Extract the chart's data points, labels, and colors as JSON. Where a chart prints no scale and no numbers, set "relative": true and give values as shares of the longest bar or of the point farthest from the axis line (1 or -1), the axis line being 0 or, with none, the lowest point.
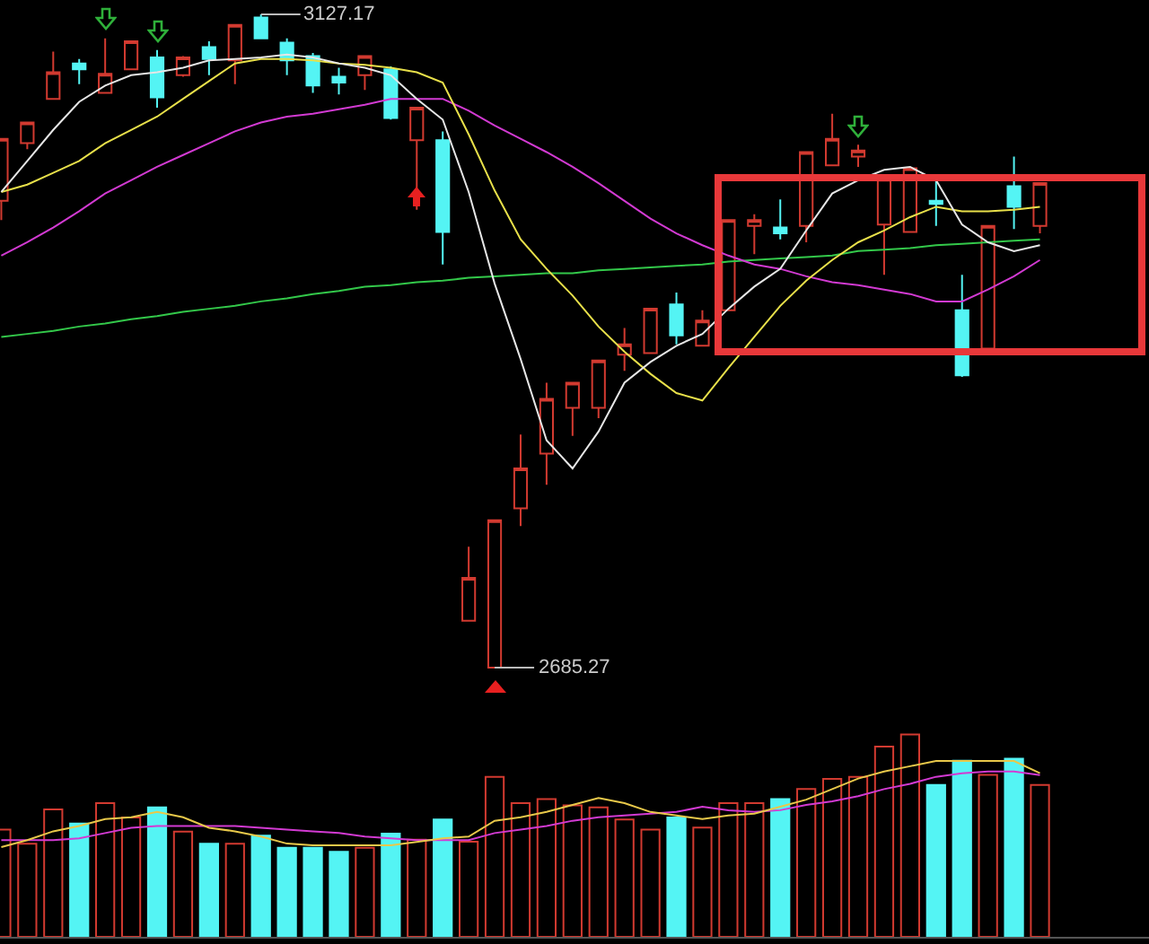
{
  "chart_data": [
    {
      "type": "candlestick",
      "categories": [
        null,
        null,
        null,
        null,
        null,
        null,
        null,
        null,
        null,
        null,
        null,
        null,
        null,
        null,
        null,
        null,
        null,
        null,
        null,
        null,
        null,
        null,
        null,
        null,
        null,
        null,
        null,
        null,
        null,
        null,
        null,
        null,
        null,
        null,
        null,
        null,
        null,
        null,
        null,
        null,
        null
      ],
      "ohlc": [
        [
          3001,
          3043,
          2988,
          3043
        ],
        [
          3040,
          3054,
          3036,
          3054
        ],
        [
          3070,
          3102,
          3070,
          3088
        ],
        [
          3094,
          3097,
          3080,
          3090
        ],
        [
          3074,
          3111,
          3074,
          3087
        ],
        [
          3090,
          3109,
          3090,
          3109
        ],
        [
          3098,
          3103,
          3064,
          3071
        ],
        [
          3086,
          3099,
          3085,
          3098
        ],
        [
          3105,
          3109,
          3086,
          3097
        ],
        [
          3096,
          3120,
          3080,
          3120
        ],
        [
          3125,
          3127.17,
          3111,
          3111
        ],
        [
          3108,
          3111,
          3086,
          3096
        ],
        [
          3099,
          3101,
          3074,
          3079
        ],
        [
          3085,
          3091,
          3073,
          3081
        ],
        [
          3086,
          3099,
          3076,
          3099
        ],
        [
          3090,
          3092,
          3056,
          3057
        ],
        [
          3042,
          3064,
          2995,
          3064
        ],
        [
          3042,
          3048,
          2958,
          2980
        ],
        [
          2717,
          2767,
          2717,
          2746
        ],
        [
          2685.27,
          2785,
          2685.27,
          2785
        ],
        [
          2793,
          2843,
          2781,
          2820
        ],
        [
          2830,
          2878,
          2809,
          2867
        ],
        [
          2861,
          2878,
          2842,
          2878
        ],
        [
          2861,
          2893,
          2854,
          2893
        ],
        [
          2897,
          2915,
          2886,
          2904
        ],
        [
          2898,
          2928,
          2898,
          2928
        ],
        [
          2931,
          2939,
          2904,
          2910
        ],
        [
          2903,
          2927,
          2903,
          2920
        ],
        [
          2927,
          2988,
          2927,
          2988
        ],
        [
          2984,
          2992,
          2965,
          2988
        ],
        [
          2983,
          3002,
          2975,
          2979
        ],
        [
          2984,
          3034,
          2973,
          3034
        ],
        [
          3025,
          3060,
          3025,
          3043
        ],
        [
          3031,
          3039,
          3024,
          3035
        ],
        [
          2985,
          3016,
          2951,
          3016
        ],
        [
          2980,
          3023,
          2980,
          3023
        ],
        [
          3001,
          3016,
          2984,
          2999
        ],
        [
          2927,
          2951,
          2882,
          2883
        ],
        [
          2901,
          2984,
          2901,
          2984
        ],
        [
          3011,
          3031,
          2982,
          2997
        ],
        [
          2984,
          3013,
          2979,
          3013
        ]
      ],
      "colors": [
        "#d23a30",
        "#d23a30",
        "#d23a30",
        "#54f4f4",
        "#d23a30",
        "#d23a30",
        "#54f4f4",
        "#d23a30",
        "#54f4f4",
        "#d23a30",
        "#54f4f4",
        "#54f4f4",
        "#54f4f4",
        "#54f4f4",
        "#d23a30",
        "#54f4f4",
        "#d23a30",
        "#54f4f4",
        "#d23a30",
        "#d23a30",
        "#d23a30",
        "#d23a30",
        "#d23a30",
        "#d23a30",
        "#d23a30",
        "#d23a30",
        "#54f4f4",
        "#d23a30",
        "#d23a30",
        "#d23a30",
        "#54f4f4",
        "#d23a30",
        "#d23a30",
        "#d23a30",
        "#d23a30",
        "#d23a30",
        "#54f4f4",
        "#54f4f4",
        "#d23a30",
        "#54f4f4",
        "#d23a30"
      ],
      "series": [
        {
          "type": "line",
          "color": "#33c84a",
          "values": [
            2909,
            2911,
            2913,
            2916,
            2918,
            2921,
            2923,
            2926,
            2928,
            2930,
            2933,
            2935,
            2938,
            2940,
            2943,
            2944,
            2946,
            2947,
            2949,
            2950,
            2951,
            2952,
            2952,
            2954,
            2955,
            2956,
            2957,
            2958,
            2960,
            2961,
            2962,
            2963,
            2964,
            2967,
            2968,
            2969,
            2971,
            2972,
            2973,
            2974,
            2975
          ]
        },
        {
          "type": "line",
          "color": "#d23ad2",
          "values": [
            2964,
            2973,
            2983,
            2994,
            3006,
            3015,
            3024,
            3032,
            3040,
            3048,
            3054,
            3058,
            3060,
            3063,
            3066,
            3070,
            3070,
            3070,
            3062,
            3052,
            3043,
            3034,
            3024,
            3013,
            3001,
            2989,
            2979,
            2971,
            2964,
            2958,
            2955,
            2950,
            2946,
            2944,
            2941,
            2938,
            2933,
            2933,
            2941,
            2950,
            2961
          ]
        },
        {
          "type": "line",
          "color": "#e8e04a",
          "values": [
            3007,
            3012,
            3020,
            3028,
            3040,
            3049,
            3058,
            3070,
            3082,
            3094,
            3097,
            3097,
            3096,
            3094,
            3093,
            3091,
            3088,
            3081,
            3046,
            3008,
            2975,
            2955,
            2937,
            2916,
            2899,
            2884,
            2871,
            2866,
            2888,
            2909,
            2930,
            2947,
            2961,
            2973,
            2981,
            2990,
            2997,
            2994,
            2994,
            2995,
            2997
          ]
        },
        {
          "type": "line",
          "color": "#e6e6e6",
          "values": [
            3007,
            3028,
            3049,
            3068,
            3079,
            3086,
            3088,
            3091,
            3096,
            3097,
            3098,
            3100,
            3098,
            3094,
            3091,
            3086,
            3070,
            3056,
            3007,
            2945,
            2894,
            2839,
            2820,
            2845,
            2878,
            2892,
            2903,
            2911,
            2928,
            2943,
            2955,
            2981,
            3006,
            3015,
            3022,
            3024,
            3015,
            2985,
            2973,
            2967,
            2971
          ]
        }
      ],
      "annotations": [
        "3127.17",
        "2685.27"
      ]
    },
    {
      "type": "bar",
      "relative": true,
      "categories": [
        null,
        null,
        null,
        null,
        null,
        null,
        null,
        null,
        null,
        null,
        null,
        null,
        null,
        null,
        null,
        null,
        null,
        null,
        null,
        null,
        null,
        null,
        null,
        null,
        null,
        null,
        null,
        null,
        null,
        null,
        null,
        null,
        null,
        null,
        null,
        null,
        null,
        null,
        null,
        null,
        null
      ],
      "colors": [
        "#d23a30",
        "#d23a30",
        "#d23a30",
        "#54f4f4",
        "#d23a30",
        "#d23a30",
        "#54f4f4",
        "#d23a30",
        "#54f4f4",
        "#d23a30",
        "#54f4f4",
        "#54f4f4",
        "#54f4f4",
        "#54f4f4",
        "#d23a30",
        "#54f4f4",
        "#d23a30",
        "#54f4f4",
        "#d23a30",
        "#d23a30",
        "#d23a30",
        "#d23a30",
        "#d23a30",
        "#d23a30",
        "#d23a30",
        "#d23a30",
        "#54f4f4",
        "#d23a30",
        "#d23a30",
        "#d23a30",
        "#54f4f4",
        "#d23a30",
        "#d23a30",
        "#d23a30",
        "#d23a30",
        "#d23a30",
        "#54f4f4",
        "#54f4f4",
        "#d23a30",
        "#54f4f4",
        "#d23a30"
      ],
      "values": [
        0.53,
        0.46,
        0.63,
        0.56,
        0.66,
        0.59,
        0.64,
        0.52,
        0.46,
        0.46,
        0.5,
        0.44,
        0.44,
        0.42,
        0.44,
        0.51,
        0.48,
        0.58,
        0.47,
        0.79,
        0.66,
        0.68,
        0.65,
        0.64,
        0.58,
        0.53,
        0.59,
        0.54,
        0.66,
        0.66,
        0.68,
        0.73,
        0.78,
        0.79,
        0.94,
        1,
        0.75,
        0.87,
        0.8,
        0.88,
        0.75
      ]
    },
    {
      "type": "line",
      "relative": true,
      "categories": [
        null,
        null,
        null,
        null,
        null,
        null,
        null,
        null,
        null,
        null,
        null,
        null,
        null,
        null,
        null,
        null,
        null,
        null,
        null,
        null,
        null,
        null,
        null,
        null,
        null,
        null,
        null,
        null,
        null,
        null,
        null,
        null,
        null,
        null,
        null,
        null,
        null,
        null,
        null,
        null,
        null
      ],
      "series": [
        {
          "color": "#d23ad2",
          "values": [
            0.55,
            0.55,
            0.55,
            0.56,
            0.59,
            0.62,
            0.63,
            0.63,
            0.63,
            0.63,
            0.62,
            0.61,
            0.6,
            0.59,
            0.57,
            0.56,
            0.55,
            0.55,
            0.55,
            0.59,
            0.61,
            0.63,
            0.66,
            0.68,
            0.69,
            0.7,
            0.71,
            0.74,
            0.72,
            0.71,
            0.72,
            0.75,
            0.77,
            0.8,
            0.84,
            0.87,
            0.91,
            0.93,
            0.94,
            0.94,
            0.92
          ]
        },
        {
          "color": "#e8c84a",
          "values": [
            0.51,
            0.55,
            0.6,
            0.63,
            0.67,
            0.68,
            0.71,
            0.68,
            0.62,
            0.6,
            0.57,
            0.53,
            0.52,
            0.52,
            0.52,
            0.52,
            0.54,
            0.56,
            0.57,
            0.66,
            0.68,
            0.71,
            0.75,
            0.79,
            0.76,
            0.71,
            0.69,
            0.67,
            0.69,
            0.7,
            0.74,
            0.78,
            0.84,
            0.9,
            0.94,
            0.97,
            1,
            1,
            1,
            1,
            0.93
          ]
        }
      ]
    }
  ]
}
